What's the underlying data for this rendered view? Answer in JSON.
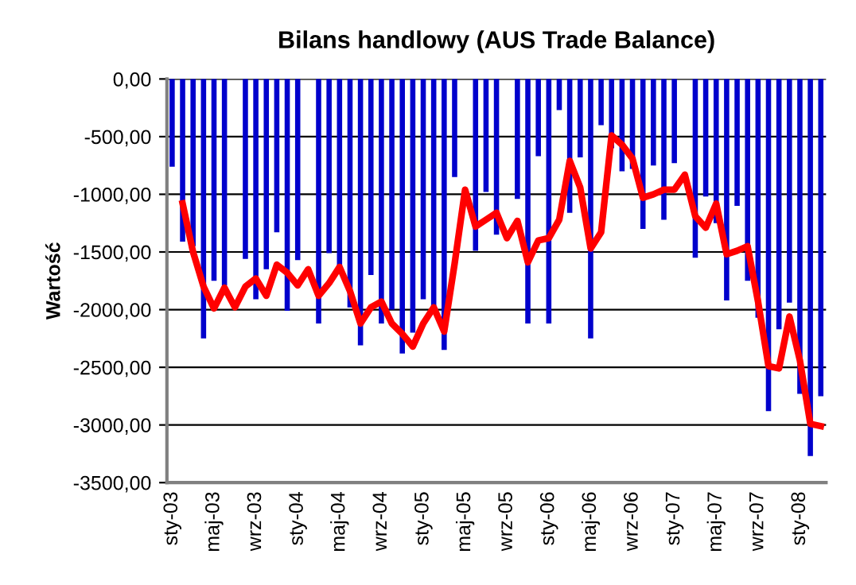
{
  "chart_data": {
    "type": "bar",
    "title": "Bilans handlowy (AUS Trade Balance)",
    "ylabel": "Wartość",
    "categories": [
      "sty-03",
      null,
      null,
      null,
      "maj-03",
      null,
      null,
      null,
      "wrz-03",
      null,
      null,
      null,
      "sty-04",
      null,
      null,
      null,
      "maj-04",
      null,
      null,
      null,
      "wrz-04",
      null,
      null,
      null,
      "sty-05",
      null,
      null,
      null,
      "maj-05",
      null,
      null,
      null,
      "wrz-05",
      null,
      null,
      null,
      "sty-06",
      null,
      null,
      null,
      "maj-06",
      null,
      null,
      null,
      "wrz-06",
      null,
      null,
      null,
      "sty-07",
      null,
      null,
      null,
      "maj-07",
      null,
      null,
      null,
      "wrz-07",
      null,
      null,
      null,
      "sty-08",
      null,
      null
    ],
    "series": [
      {
        "color": "#0000cc",
        "values": [
          -760,
          -1410,
          -1450,
          -2250,
          -1750,
          -1790,
          null,
          -1560,
          -1910,
          -1650,
          -1330,
          -2010,
          -1570,
          null,
          -2120,
          -1510,
          -1650,
          -1980,
          -2310,
          -1700,
          -2120,
          -2000,
          -2380,
          -2200,
          -1910,
          -1990,
          -2350,
          -850,
          null,
          -1490,
          -980,
          -1350,
          null,
          -1040,
          -2120,
          -670,
          -2120,
          -270,
          -1160,
          -680,
          -2250,
          -400,
          -600,
          -800,
          -780,
          -1300,
          -750,
          -1220,
          -730,
          null,
          -1550,
          -1020,
          -1250,
          -1920,
          -1100,
          -1750,
          -2070,
          -2880,
          -2170,
          -1940,
          -2730,
          -3270,
          -2750
        ]
      },
      {
        "type": "line",
        "color": "#ff0000",
        "values": [
          null,
          -1080,
          -1500,
          -1800,
          -1990,
          -1810,
          -1980,
          -1800,
          -1730,
          -1880,
          -1610,
          -1680,
          -1790,
          -1650,
          -1880,
          -1770,
          -1630,
          -1840,
          -2120,
          -1980,
          -1930,
          -2120,
          -2210,
          -2320,
          -2120,
          -1980,
          -2190,
          -1600,
          -960,
          -1280,
          -1220,
          -1160,
          -1380,
          -1230,
          -1590,
          -1400,
          -1380,
          -1220,
          -710,
          -940,
          -1470,
          -1330,
          -490,
          -570,
          -690,
          -1030,
          -1000,
          -960,
          -960,
          -830,
          -1190,
          -1290,
          -1080,
          -1520,
          -1490,
          -1450,
          -1930,
          -2490,
          -2510,
          -2060,
          -2440,
          -2990,
          -3010
        ]
      }
    ],
    "ylim": [
      -3500,
      0
    ],
    "yticks": [
      {
        "value": 0,
        "label": "0,00"
      },
      {
        "value": -500,
        "label": "-500,00"
      },
      {
        "value": -1000,
        "label": "-1000,00"
      },
      {
        "value": -1500,
        "label": "-1500,00"
      },
      {
        "value": -2000,
        "label": "-2000,00"
      },
      {
        "value": -2500,
        "label": "-2500,00"
      },
      {
        "value": -3000,
        "label": "-3000,00"
      },
      {
        "value": -3500,
        "label": "-3500,00"
      }
    ],
    "grid": "y"
  }
}
